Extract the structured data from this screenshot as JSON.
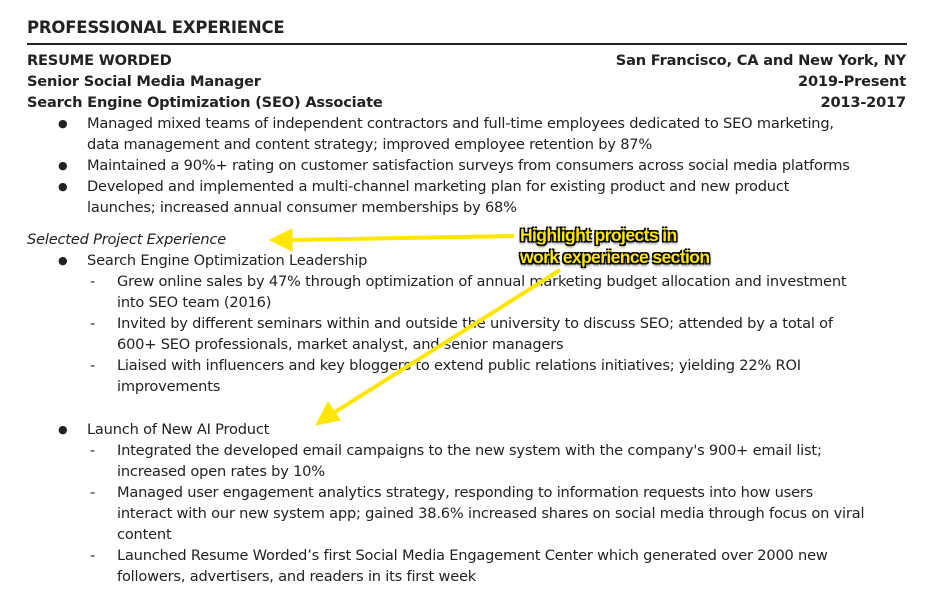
{
  "section_title": "PROFESSIONAL EXPERIENCE",
  "company": {
    "name": "RESUME WORDED",
    "location": "San Francisco, CA and New York, NY"
  },
  "roles": [
    {
      "title": "Senior Social Media Manager",
      "dates": "2019-Present"
    },
    {
      "title": "Search Engine Optimization (SEO) Associate",
      "dates": "2013-2017"
    }
  ],
  "bullets": [
    [
      "Managed mixed teams of independent contractors and full-time employees dedicated to SEO marketing,",
      "data management and content strategy; improved employee retention by 87%"
    ],
    [
      "Maintained a 90%+ rating on customer satisfaction surveys from consumers across social media platforms"
    ],
    [
      "Developed and implemented a multi-channel marketing plan for existing product and new product",
      "launches; increased annual consumer memberships by 68%"
    ]
  ],
  "projects_heading": "Selected Project Experience",
  "projects": [
    {
      "name": "Search Engine Optimization Leadership",
      "items": [
        [
          "Grew online sales by 47% through optimization of annual marketing budget allocation and investment",
          "into SEO team (2016)"
        ],
        [
          "Invited by different seminars within and outside the university to discuss SEO; attended by a total of",
          "600+ SEO professionals, market analyst, and senior managers"
        ],
        [
          "Liaised with influencers and key bloggers to extend public relations initiatives; yielding 22% ROI",
          "improvements"
        ]
      ]
    },
    {
      "name": "Launch of New AI Product",
      "items": [
        [
          "Integrated the developed email campaigns to the new system with the company's 900+ email list;",
          "increased open rates by 10%"
        ],
        [
          "Managed user engagement analytics strategy, responding to information requests into how users",
          "interact with our new system app; gained 38.6% increased shares on social media through focus on viral",
          "content"
        ],
        [
          "Launched Resume Worded’s first Social Media Engagement Center which generated over 2000 new",
          "followers, advertisers, and readers in its first week"
        ]
      ]
    }
  ],
  "annotation": {
    "lines": [
      "Highlight projects in",
      "work experience section"
    ],
    "color": "#ffe600"
  }
}
